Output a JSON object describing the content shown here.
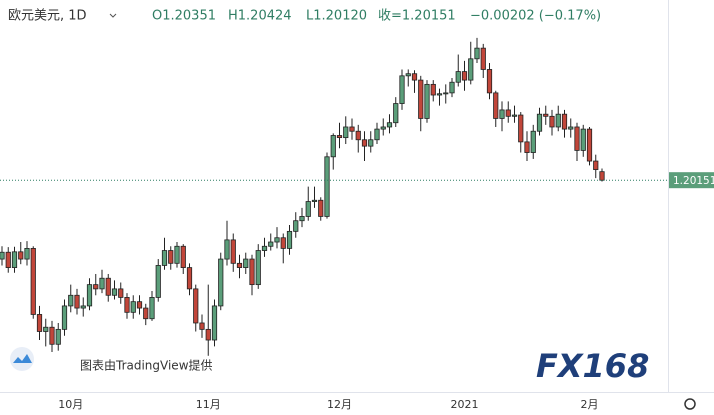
{
  "chart_data": {
    "type": "candlestick",
    "title": "欧元美元, 1D",
    "ohlc_header": [
      "O1.20351",
      "H1.20424",
      "L1.20120",
      "收=1.20151",
      "−0.00202 (−0.17%)"
    ],
    "watermark": "图表由TradingView提供",
    "logo": "FX168",
    "categories": [
      null,
      null,
      null,
      null,
      null,
      null,
      null,
      null,
      null,
      null,
      null,
      "10月",
      null,
      null,
      null,
      null,
      null,
      null,
      null,
      null,
      null,
      null,
      null,
      null,
      null,
      null,
      null,
      null,
      null,
      null,
      null,
      null,
      null,
      "11月",
      null,
      null,
      null,
      null,
      null,
      null,
      null,
      null,
      null,
      null,
      null,
      null,
      null,
      null,
      null,
      null,
      null,
      null,
      null,
      null,
      "12月",
      null,
      null,
      null,
      null,
      null,
      null,
      null,
      null,
      null,
      null,
      null,
      null,
      null,
      null,
      null,
      null,
      null,
      null,
      null,
      "2021",
      null,
      null,
      null,
      null,
      null,
      null,
      null,
      null,
      null,
      null,
      null,
      null,
      null,
      null,
      null,
      null,
      null,
      null,
      null,
      "2月",
      null,
      null
    ],
    "open": [
      1.183,
      1.1846,
      1.181,
      1.1847,
      1.183,
      1.1855,
      1.17,
      1.166,
      1.167,
      1.163,
      1.1665,
      1.172,
      1.1745,
      1.1715,
      1.172,
      1.177,
      1.176,
      1.1785,
      1.1745,
      1.176,
      1.174,
      1.1705,
      1.173,
      1.1715,
      1.169,
      1.174,
      1.1815,
      1.185,
      1.182,
      1.186,
      1.181,
      1.176,
      1.168,
      1.1665,
      1.164,
      1.172,
      1.183,
      1.1875,
      1.182,
      1.181,
      1.183,
      1.177,
      1.185,
      1.186,
      1.187,
      1.188,
      1.1855,
      1.1895,
      1.192,
      1.193,
      1.1965,
      1.1968,
      1.193,
      1.207,
      1.212,
      1.2115,
      1.214,
      1.213,
      1.211,
      1.2095,
      1.211,
      1.2135,
      1.214,
      1.215,
      1.2195,
      1.226,
      1.2265,
      1.225,
      1.216,
      1.224,
      1.2215,
      1.2218,
      1.222,
      1.2245,
      1.227,
      1.225,
      1.23,
      1.2325,
      1.2275,
      1.222,
      1.216,
      1.218,
      1.2165,
      1.2168,
      1.2105,
      1.208,
      1.213,
      1.217,
      1.2165,
      1.214,
      1.217,
      1.2135,
      1.214,
      1.2085,
      1.2135,
      1.206,
      1.20351
    ],
    "high": [
      1.186,
      1.1858,
      1.1859,
      1.187,
      1.1872,
      1.186,
      1.172,
      1.169,
      1.1685,
      1.168,
      1.1735,
      1.177,
      1.176,
      1.174,
      1.1785,
      1.1795,
      1.1805,
      1.1795,
      1.178,
      1.1775,
      1.175,
      1.1745,
      1.1745,
      1.1725,
      1.1755,
      1.183,
      1.188,
      1.186,
      1.187,
      1.1865,
      1.182,
      1.177,
      1.17,
      1.177,
      1.1735,
      1.1845,
      1.192,
      1.189,
      1.184,
      1.1845,
      1.184,
      1.1865,
      1.188,
      1.189,
      1.1905,
      1.189,
      1.191,
      1.194,
      1.195,
      1.2,
      1.2,
      1.1975,
      1.208,
      1.2125,
      1.215,
      1.2165,
      1.216,
      1.2145,
      1.213,
      1.213,
      1.215,
      1.216,
      1.217,
      1.221,
      1.2275,
      1.2275,
      1.2273,
      1.226,
      1.225,
      1.225,
      1.223,
      1.224,
      1.2255,
      1.231,
      1.2295,
      1.234,
      1.2349,
      1.2335,
      1.229,
      1.2225,
      1.22,
      1.22,
      1.219,
      1.2175,
      1.213,
      1.2145,
      1.2185,
      1.219,
      1.218,
      1.219,
      1.218,
      1.216,
      1.215,
      1.2145,
      1.214,
      1.2075,
      1.20424
    ],
    "low": [
      1.1815,
      1.1798,
      1.1798,
      1.1818,
      1.1815,
      1.169,
      1.164,
      1.1625,
      1.1612,
      1.1615,
      1.165,
      1.1705,
      1.17,
      1.1695,
      1.171,
      1.1745,
      1.175,
      1.173,
      1.1735,
      1.1725,
      1.169,
      1.169,
      1.17,
      1.1675,
      1.1685,
      1.173,
      1.1805,
      1.1805,
      1.181,
      1.1795,
      1.1745,
      1.166,
      1.1645,
      1.1603,
      1.1625,
      1.171,
      1.1815,
      1.18,
      1.1785,
      1.1795,
      1.1745,
      1.176,
      1.1835,
      1.185,
      1.1855,
      1.182,
      1.184,
      1.188,
      1.1905,
      1.192,
      1.195,
      1.192,
      1.1925,
      1.204,
      1.209,
      1.21,
      1.211,
      1.208,
      1.206,
      1.208,
      1.21,
      1.212,
      1.2125,
      1.214,
      1.218,
      1.2235,
      1.222,
      1.213,
      1.215,
      1.22,
      1.219,
      1.2195,
      1.221,
      1.2235,
      1.2225,
      1.224,
      1.229,
      1.2255,
      1.2205,
      1.214,
      1.213,
      1.215,
      1.215,
      1.208,
      1.206,
      1.2065,
      1.212,
      1.2145,
      1.212,
      1.213,
      1.2115,
      1.2115,
      1.206,
      1.207,
      1.205,
      1.202,
      1.2012
    ],
    "close": [
      1.1846,
      1.181,
      1.1847,
      1.183,
      1.1855,
      1.17,
      1.166,
      1.167,
      1.163,
      1.1665,
      1.172,
      1.1745,
      1.1715,
      1.172,
      1.177,
      1.176,
      1.1785,
      1.1745,
      1.176,
      1.174,
      1.1705,
      1.173,
      1.1715,
      1.169,
      1.174,
      1.1815,
      1.185,
      1.182,
      1.186,
      1.181,
      1.176,
      1.168,
      1.1665,
      1.164,
      1.172,
      1.183,
      1.1875,
      1.182,
      1.181,
      1.183,
      1.177,
      1.185,
      1.186,
      1.187,
      1.188,
      1.1855,
      1.1895,
      1.192,
      1.193,
      1.1965,
      1.1968,
      1.193,
      1.207,
      1.212,
      1.2115,
      1.214,
      1.213,
      1.211,
      1.2095,
      1.211,
      1.2135,
      1.214,
      1.215,
      1.2195,
      1.226,
      1.2265,
      1.225,
      1.216,
      1.224,
      1.2215,
      1.2218,
      1.222,
      1.2245,
      1.227,
      1.225,
      1.23,
      1.2325,
      1.2275,
      1.222,
      1.216,
      1.218,
      1.2165,
      1.2168,
      1.2105,
      1.208,
      1.213,
      1.217,
      1.2165,
      1.214,
      1.217,
      1.2135,
      1.214,
      1.2085,
      1.2135,
      1.206,
      1.204,
      1.20151
    ],
    "last_price": 1.20151,
    "ylim": [
      1.1518,
      1.2438
    ],
    "up_color": "#5b9e7a",
    "down_color": "#c1463a"
  }
}
